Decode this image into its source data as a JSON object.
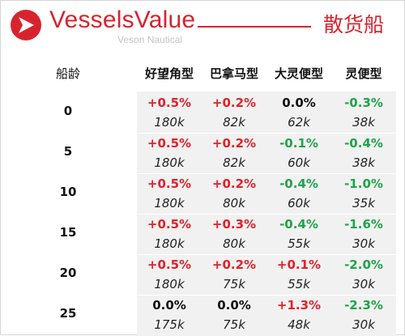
{
  "header": {
    "brand": "VesselsValue",
    "sub_brand": "Veson Nautical",
    "category": "散货船",
    "logo_icon": "vesselsvalue-logo-icon",
    "brand_color": "#d8232f"
  },
  "table": {
    "age_header": "船龄",
    "columns": [
      "好望角型",
      "巴拿马型",
      "大灵便型",
      "灵便型"
    ],
    "rows": [
      {
        "age": "0",
        "changes": [
          "+0.5%",
          "+0.2%",
          "0.0%",
          "-0.3%"
        ],
        "sizes": [
          "180k",
          "82k",
          "62k",
          "38k"
        ]
      },
      {
        "age": "5",
        "changes": [
          "+0.5%",
          "+0.2%",
          "-0.1%",
          "-0.4%"
        ],
        "sizes": [
          "180k",
          "82k",
          "60k",
          "38k"
        ]
      },
      {
        "age": "10",
        "changes": [
          "+0.5%",
          "+0.2%",
          "-0.4%",
          "-1.0%"
        ],
        "sizes": [
          "180k",
          "80k",
          "60k",
          "35k"
        ]
      },
      {
        "age": "15",
        "changes": [
          "+0.5%",
          "+0.3%",
          "-0.4%",
          "-1.6%"
        ],
        "sizes": [
          "180k",
          "80k",
          "55k",
          "30k"
        ]
      },
      {
        "age": "20",
        "changes": [
          "+0.5%",
          "+0.2%",
          "+0.1%",
          "-2.0%"
        ],
        "sizes": [
          "180k",
          "75k",
          "55k",
          "30k"
        ]
      },
      {
        "age": "25",
        "changes": [
          "0.0%",
          "0.0%",
          "+1.3%",
          "-2.3%"
        ],
        "sizes": [
          "175k",
          "75k",
          "48k",
          "30k"
        ]
      }
    ],
    "colors": {
      "positive": "#e0222a",
      "negative": "#1fa34a",
      "neutral": "#111111"
    }
  }
}
